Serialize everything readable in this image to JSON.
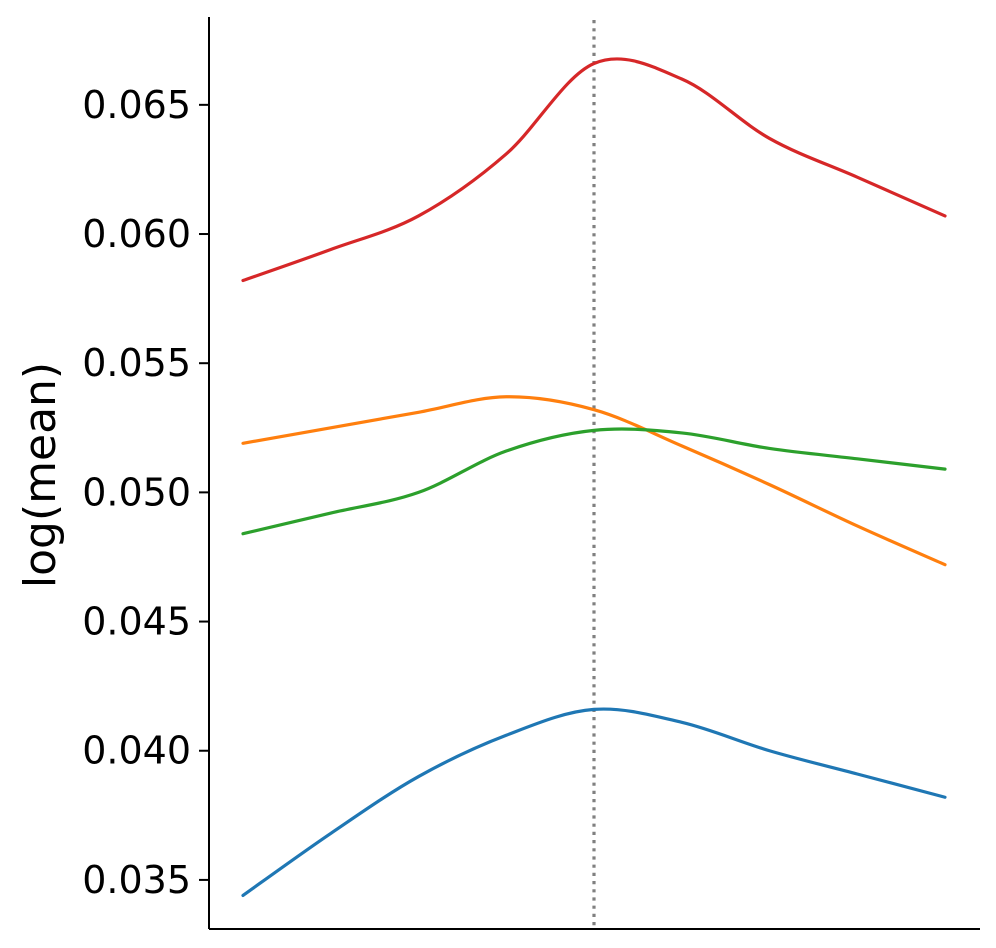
{
  "chart_data": {
    "type": "line",
    "title": "",
    "xlabel": "",
    "ylabel": "log(mean)",
    "ylim": [
      0.0331,
      0.0684
    ],
    "y_ticks": [
      0.035,
      0.04,
      0.045,
      0.05,
      0.055,
      0.06,
      0.065
    ],
    "y_tick_labels": [
      "0.035",
      "0.040",
      "0.045",
      "0.050",
      "0.055",
      "0.060",
      "0.065"
    ],
    "x_ticks_visible": false,
    "x": [
      0,
      0.5,
      1,
      1.5,
      2,
      2.5,
      3,
      3.5,
      4
    ],
    "reference_line": {
      "x": 2,
      "style": "dotted",
      "color": "#808080"
    },
    "grid": false,
    "series": [
      {
        "color": "#1f77b4",
        "values": [
          0.0344,
          0.0368,
          0.039,
          0.0406,
          0.0416,
          0.0411,
          0.04,
          0.0391,
          0.0382
        ]
      },
      {
        "color": "#ff7f0e",
        "values": [
          0.0519,
          0.0525,
          0.0531,
          0.0537,
          0.0532,
          0.0518,
          0.0503,
          0.0487,
          0.0472
        ]
      },
      {
        "color": "#2ca02c",
        "values": [
          0.0484,
          0.0492,
          0.05,
          0.0516,
          0.0524,
          0.0523,
          0.0517,
          0.0513,
          0.0509
        ]
      },
      {
        "color": "#d62728",
        "values": [
          0.0582,
          0.0594,
          0.0607,
          0.0631,
          0.0666,
          0.066,
          0.0637,
          0.0622,
          0.0607
        ]
      }
    ]
  }
}
